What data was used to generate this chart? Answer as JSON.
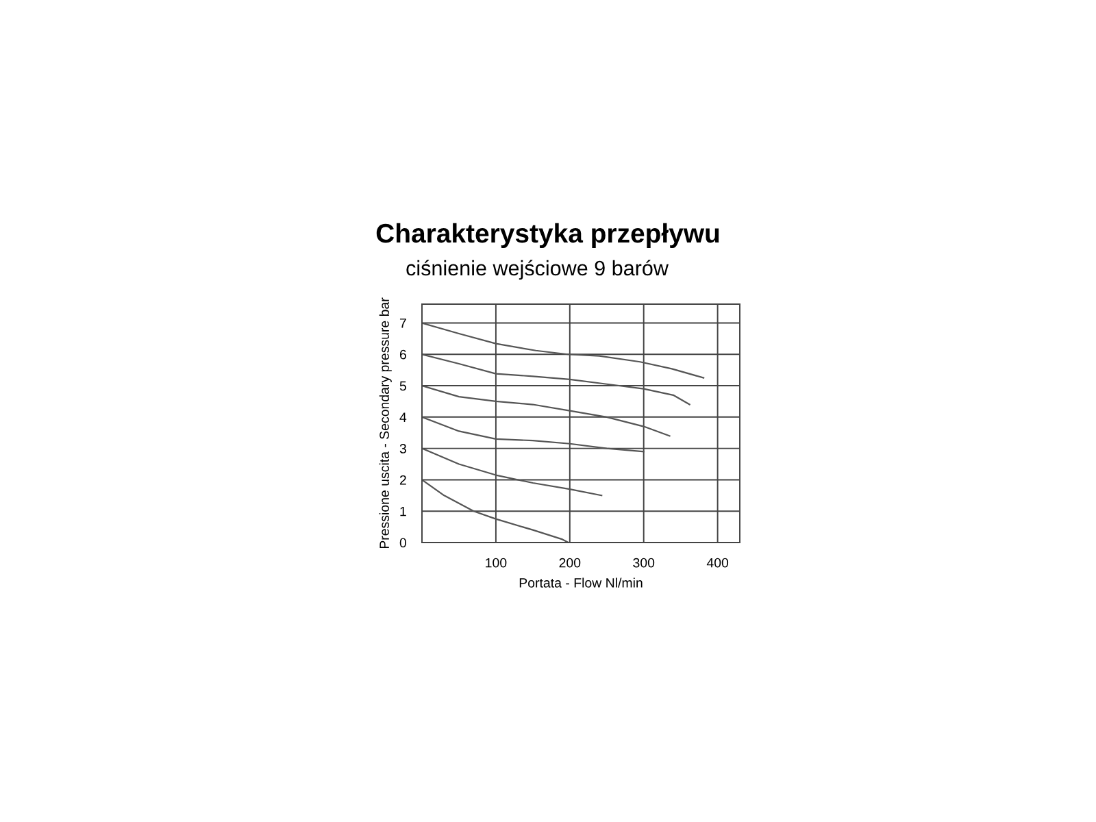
{
  "chart_data": {
    "type": "line",
    "title": "Charakterystyka przepływu",
    "subtitle": "ciśnienie wejściowe 9 barów",
    "xlabel": "Portata - Flow Nl/min",
    "ylabel": "Pressione uscita - Secondary pressure bar",
    "xlim": [
      0,
      430
    ],
    "ylim": [
      0,
      7.6
    ],
    "xticks": [
      {
        "value": 0,
        "label": null
      },
      100,
      200,
      300,
      400
    ],
    "yticks": [
      0,
      1,
      2,
      3,
      4,
      5,
      6,
      7
    ],
    "grid": true,
    "marker": "none",
    "line_style": "solid",
    "series": [
      {
        "color": "#555555",
        "x": [
          0,
          50,
          100,
          154,
          197,
          240,
          295,
          338,
          381
        ],
        "values": [
          7,
          6.66,
          6.34,
          6.12,
          6.0,
          5.95,
          5.76,
          5.54,
          5.25
        ]
      },
      {
        "color": "#555555",
        "x": [
          0,
          50,
          100,
          150,
          200,
          250,
          300,
          340,
          362
        ],
        "values": [
          6,
          5.7,
          5.38,
          5.3,
          5.2,
          5.05,
          4.9,
          4.7,
          4.4
        ]
      },
      {
        "color": "#555555",
        "x": [
          0,
          50,
          100,
          150,
          200,
          250,
          300,
          335
        ],
        "values": [
          5,
          4.65,
          4.5,
          4.4,
          4.2,
          4.0,
          3.7,
          3.4
        ]
      },
      {
        "color": "#555555",
        "x": [
          0,
          50,
          100,
          150,
          200,
          250,
          300
        ],
        "values": [
          4,
          3.55,
          3.3,
          3.25,
          3.15,
          3.0,
          2.9
        ]
      },
      {
        "color": "#555555",
        "x": [
          0,
          50,
          100,
          150,
          200,
          243
        ],
        "values": [
          3,
          2.5,
          2.15,
          1.9,
          1.7,
          1.5
        ]
      },
      {
        "color": "#555555",
        "x": [
          0,
          30,
          70,
          100,
          150,
          190,
          198
        ],
        "values": [
          2,
          1.5,
          1.0,
          0.75,
          0.4,
          0.1,
          0
        ]
      }
    ]
  }
}
